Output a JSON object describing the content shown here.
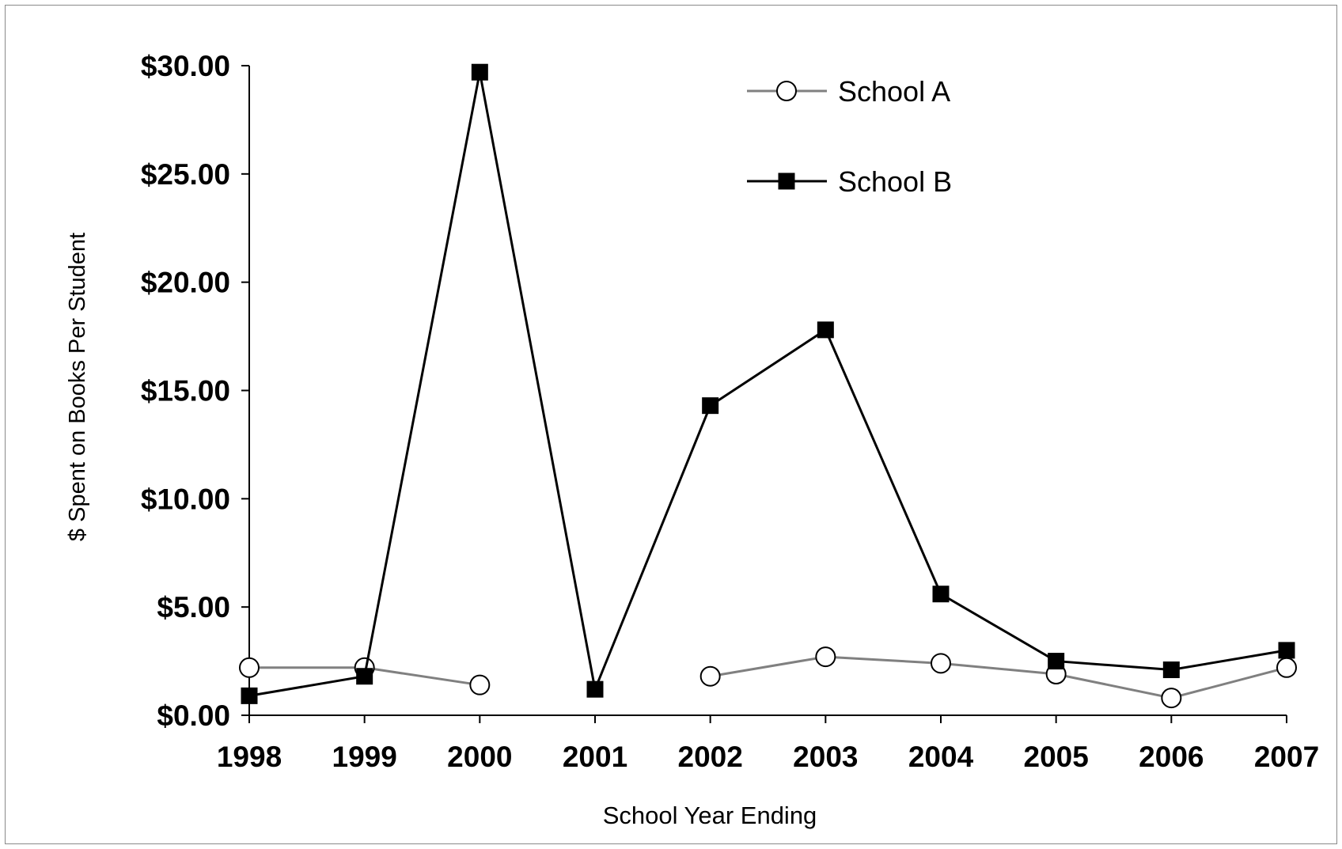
{
  "chart_data": {
    "type": "line",
    "xlabel": "School Year Ending",
    "ylabel": "$ Spent on Books Per Student",
    "categories": [
      "1998",
      "1999",
      "2000",
      "2001",
      "2002",
      "2003",
      "2004",
      "2005",
      "2006",
      "2007"
    ],
    "yticks": [
      "$0.00",
      "$5.00",
      "$10.00",
      "$15.00",
      "$20.00",
      "$25.00",
      "$30.00"
    ],
    "ylim": [
      0,
      30
    ],
    "grid": false,
    "legend_position": "top-center",
    "series": [
      {
        "name": "School A",
        "marker": "open-circle",
        "color": "#808080",
        "values": [
          2.2,
          2.2,
          1.4,
          null,
          1.8,
          2.7,
          2.4,
          1.9,
          0.8,
          2.2
        ]
      },
      {
        "name": "School B",
        "marker": "filled-square",
        "color": "#000000",
        "values": [
          0.9,
          1.8,
          29.7,
          1.2,
          14.3,
          17.8,
          5.6,
          2.5,
          2.1,
          3.0
        ]
      }
    ]
  }
}
